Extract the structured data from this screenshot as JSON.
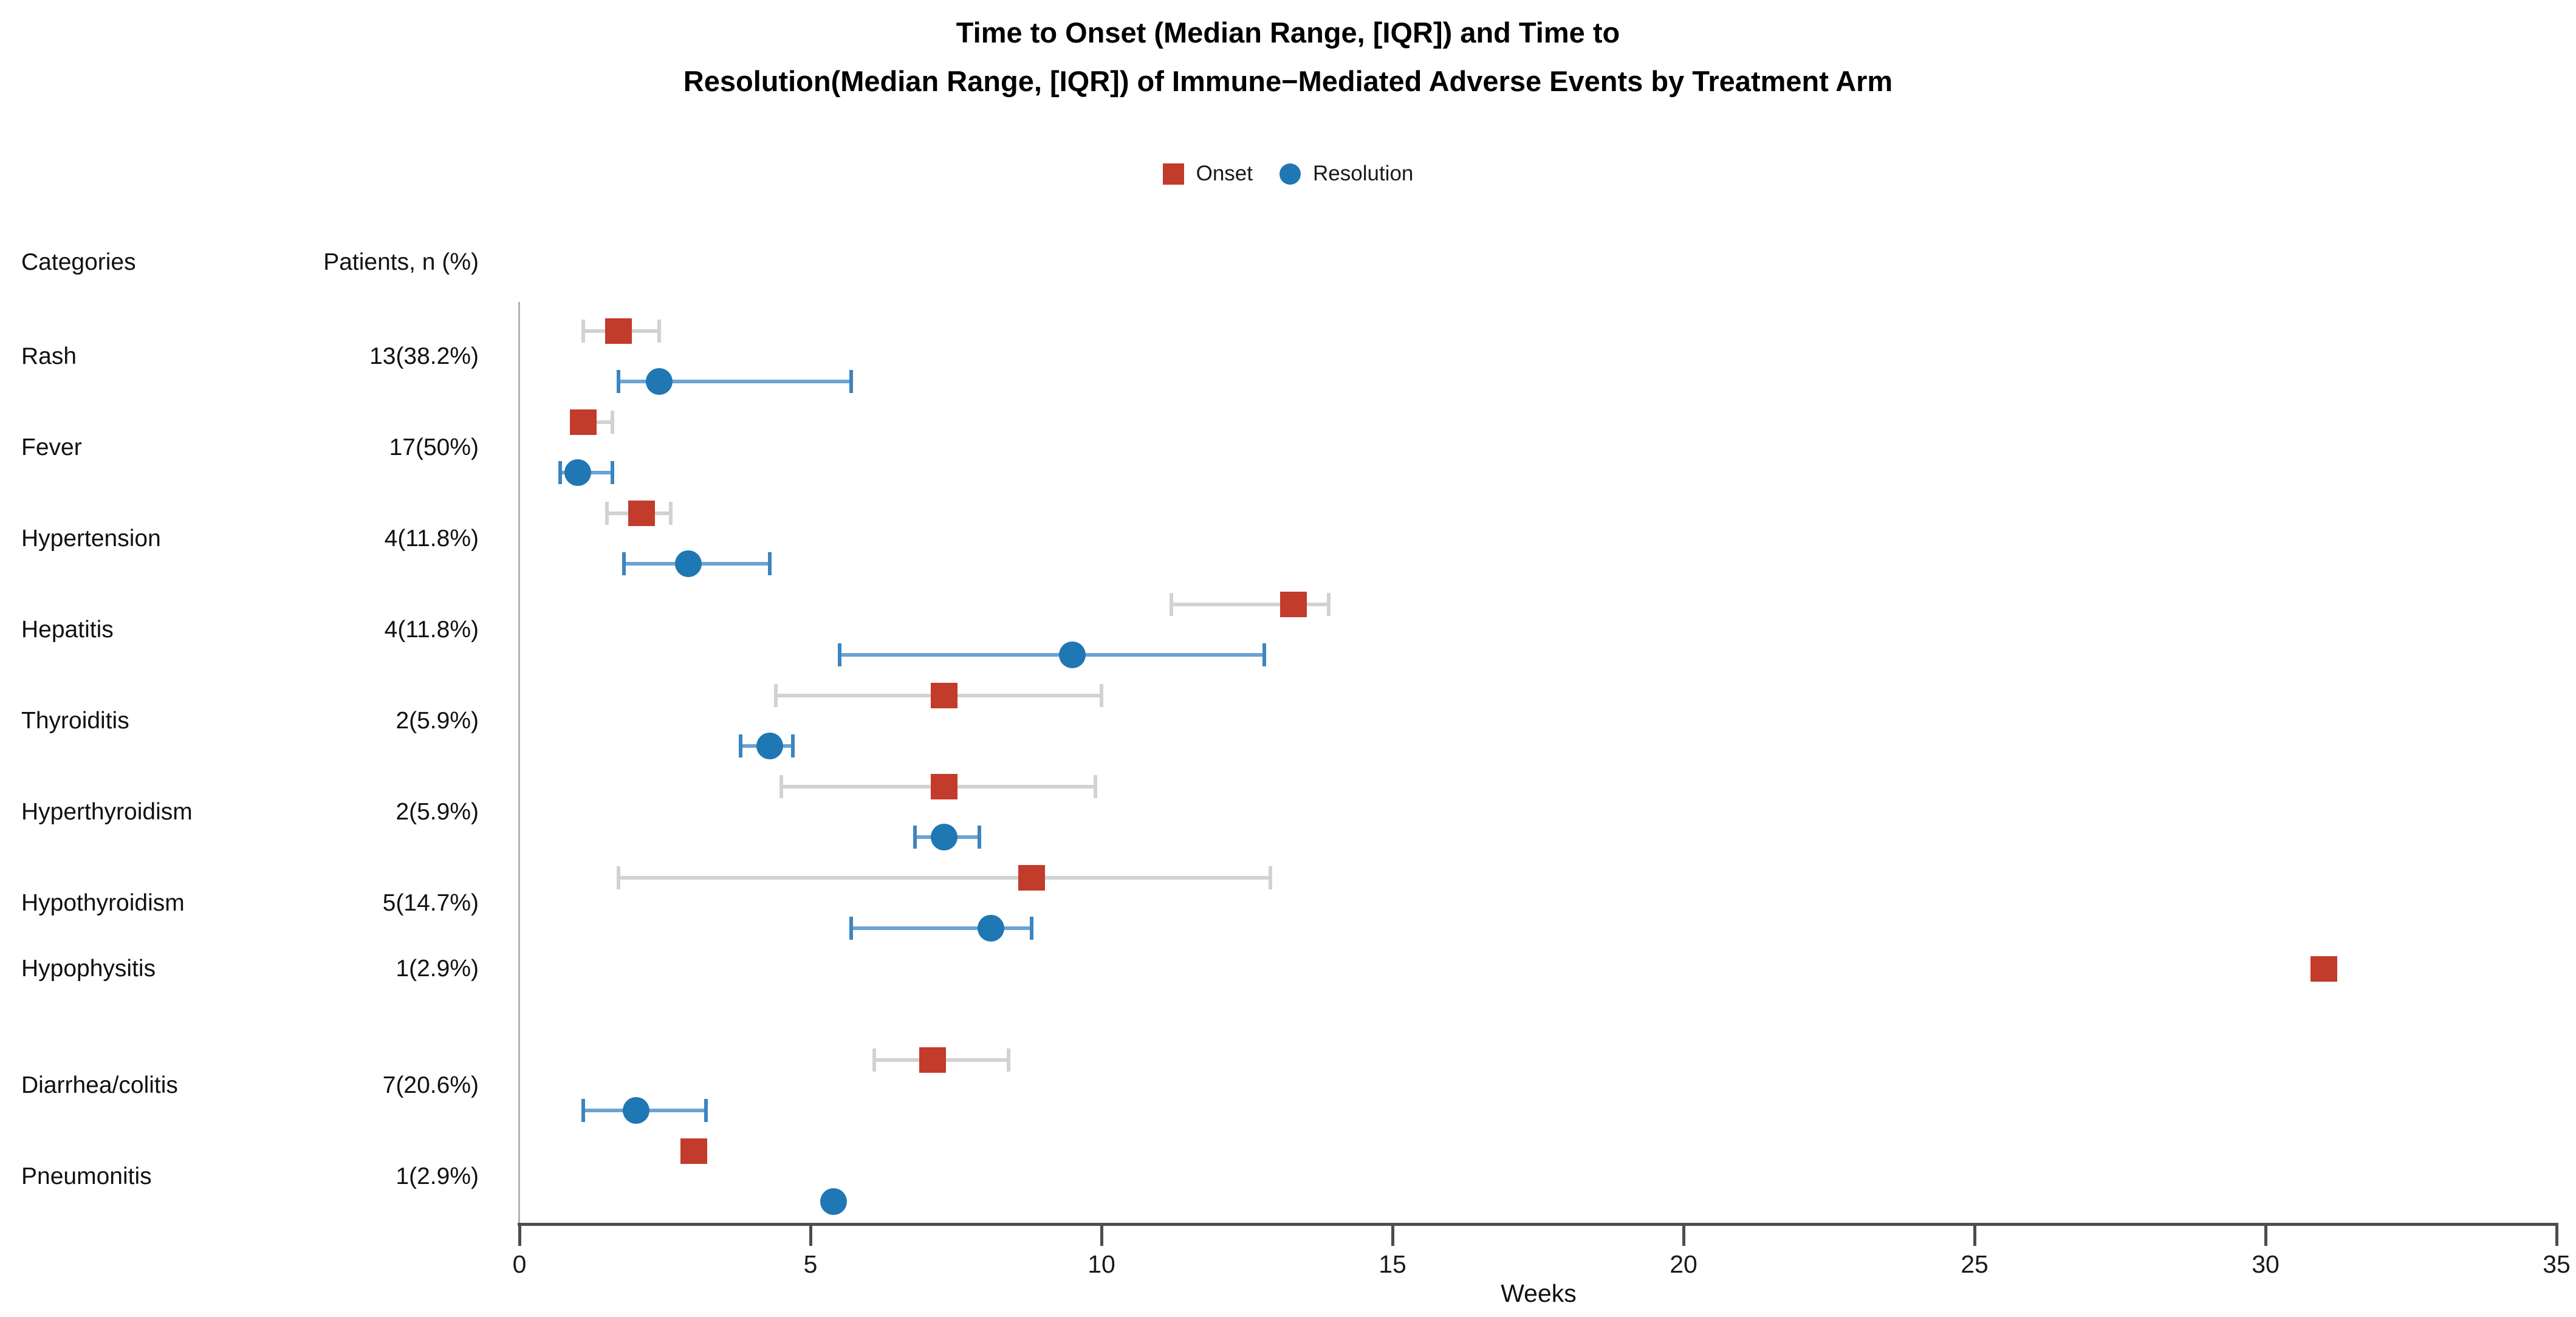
{
  "title": {
    "line1": "Time to Onset (Median Range, [IQR]) and Time to",
    "line2": "Resolution(Median Range, [IQR]) of Immune−Mediated Adverse Events by Treatment Arm"
  },
  "legend": {
    "onset_label": "Onset",
    "resolution_label": "Resolution"
  },
  "table": {
    "categories_header": "Categories",
    "patients_header": "Patients, n (%)"
  },
  "axis": {
    "label": "Weeks",
    "ticks": [
      0,
      5,
      10,
      15,
      20,
      25,
      30,
      35
    ],
    "range": [
      0,
      35
    ]
  },
  "colors": {
    "onset_marker": "#c23b2b",
    "resolution_marker": "#1f77b4",
    "onset_whisker": "#d2d2d2",
    "resolution_whisker_line": "#6ba3d4",
    "resolution_whisker_cap": "#3c85c0",
    "axis": "#4d4d4d",
    "spine": "#b3b3b3",
    "text": "#111111"
  },
  "chart_data": {
    "type": "scatter",
    "subtype": "dot-whisker-forest",
    "xlabel": "Weeks",
    "xlim": [
      0,
      35
    ],
    "series_names": [
      "Onset",
      "Resolution"
    ],
    "rows": [
      {
        "category": "Rash",
        "patients": "13(38.2%)",
        "onset": {
          "median": 1.7,
          "q1": 1.1,
          "q3": 2.4
        },
        "resolution": {
          "median": 2.4,
          "q1": 1.7,
          "q3": 5.7
        }
      },
      {
        "category": "Fever",
        "patients": "17(50%)",
        "onset": {
          "median": 1.1,
          "q1": 0.9,
          "q3": 1.6
        },
        "resolution": {
          "median": 1.0,
          "q1": 0.7,
          "q3": 1.6
        }
      },
      {
        "category": "Hypertension",
        "patients": "4(11.8%)",
        "onset": {
          "median": 2.1,
          "q1": 1.5,
          "q3": 2.6
        },
        "resolution": {
          "median": 2.9,
          "q1": 1.8,
          "q3": 4.3
        }
      },
      {
        "category": "Hepatitis",
        "patients": "4(11.8%)",
        "onset": {
          "median": 13.3,
          "q1": 11.2,
          "q3": 13.9
        },
        "resolution": {
          "median": 9.5,
          "q1": 5.5,
          "q3": 12.8
        }
      },
      {
        "category": "Thyroiditis",
        "patients": "2(5.9%)",
        "onset": {
          "median": 7.3,
          "q1": 4.4,
          "q3": 10.0
        },
        "resolution": {
          "median": 4.3,
          "q1": 3.8,
          "q3": 4.7
        }
      },
      {
        "category": "Hyperthyroidism",
        "patients": "2(5.9%)",
        "onset": {
          "median": 7.3,
          "q1": 4.5,
          "q3": 9.9
        },
        "resolution": {
          "median": 7.3,
          "q1": 6.8,
          "q3": 7.9
        }
      },
      {
        "category": "Hypothyroidism",
        "patients": "5(14.7%)",
        "onset": {
          "median": 8.8,
          "q1": 1.7,
          "q3": 12.9
        },
        "resolution": {
          "median": 8.1,
          "q1": 5.7,
          "q3": 8.8
        }
      },
      {
        "category": "Hypophysitis",
        "patients": "1(2.9%)",
        "onset": {
          "median": 31.0,
          "q1": null,
          "q3": null
        },
        "resolution": null
      },
      {
        "category": "Diarrhea/colitis",
        "patients": "7(20.6%)",
        "onset": {
          "median": 7.1,
          "q1": 6.1,
          "q3": 8.4
        },
        "resolution": {
          "median": 2.0,
          "q1": 1.1,
          "q3": 3.2
        }
      },
      {
        "category": "Pneumonitis",
        "patients": "1(2.9%)",
        "onset": {
          "median": 3.0,
          "q1": null,
          "q3": null
        },
        "resolution": {
          "median": 5.4,
          "q1": null,
          "q3": null
        }
      }
    ]
  }
}
